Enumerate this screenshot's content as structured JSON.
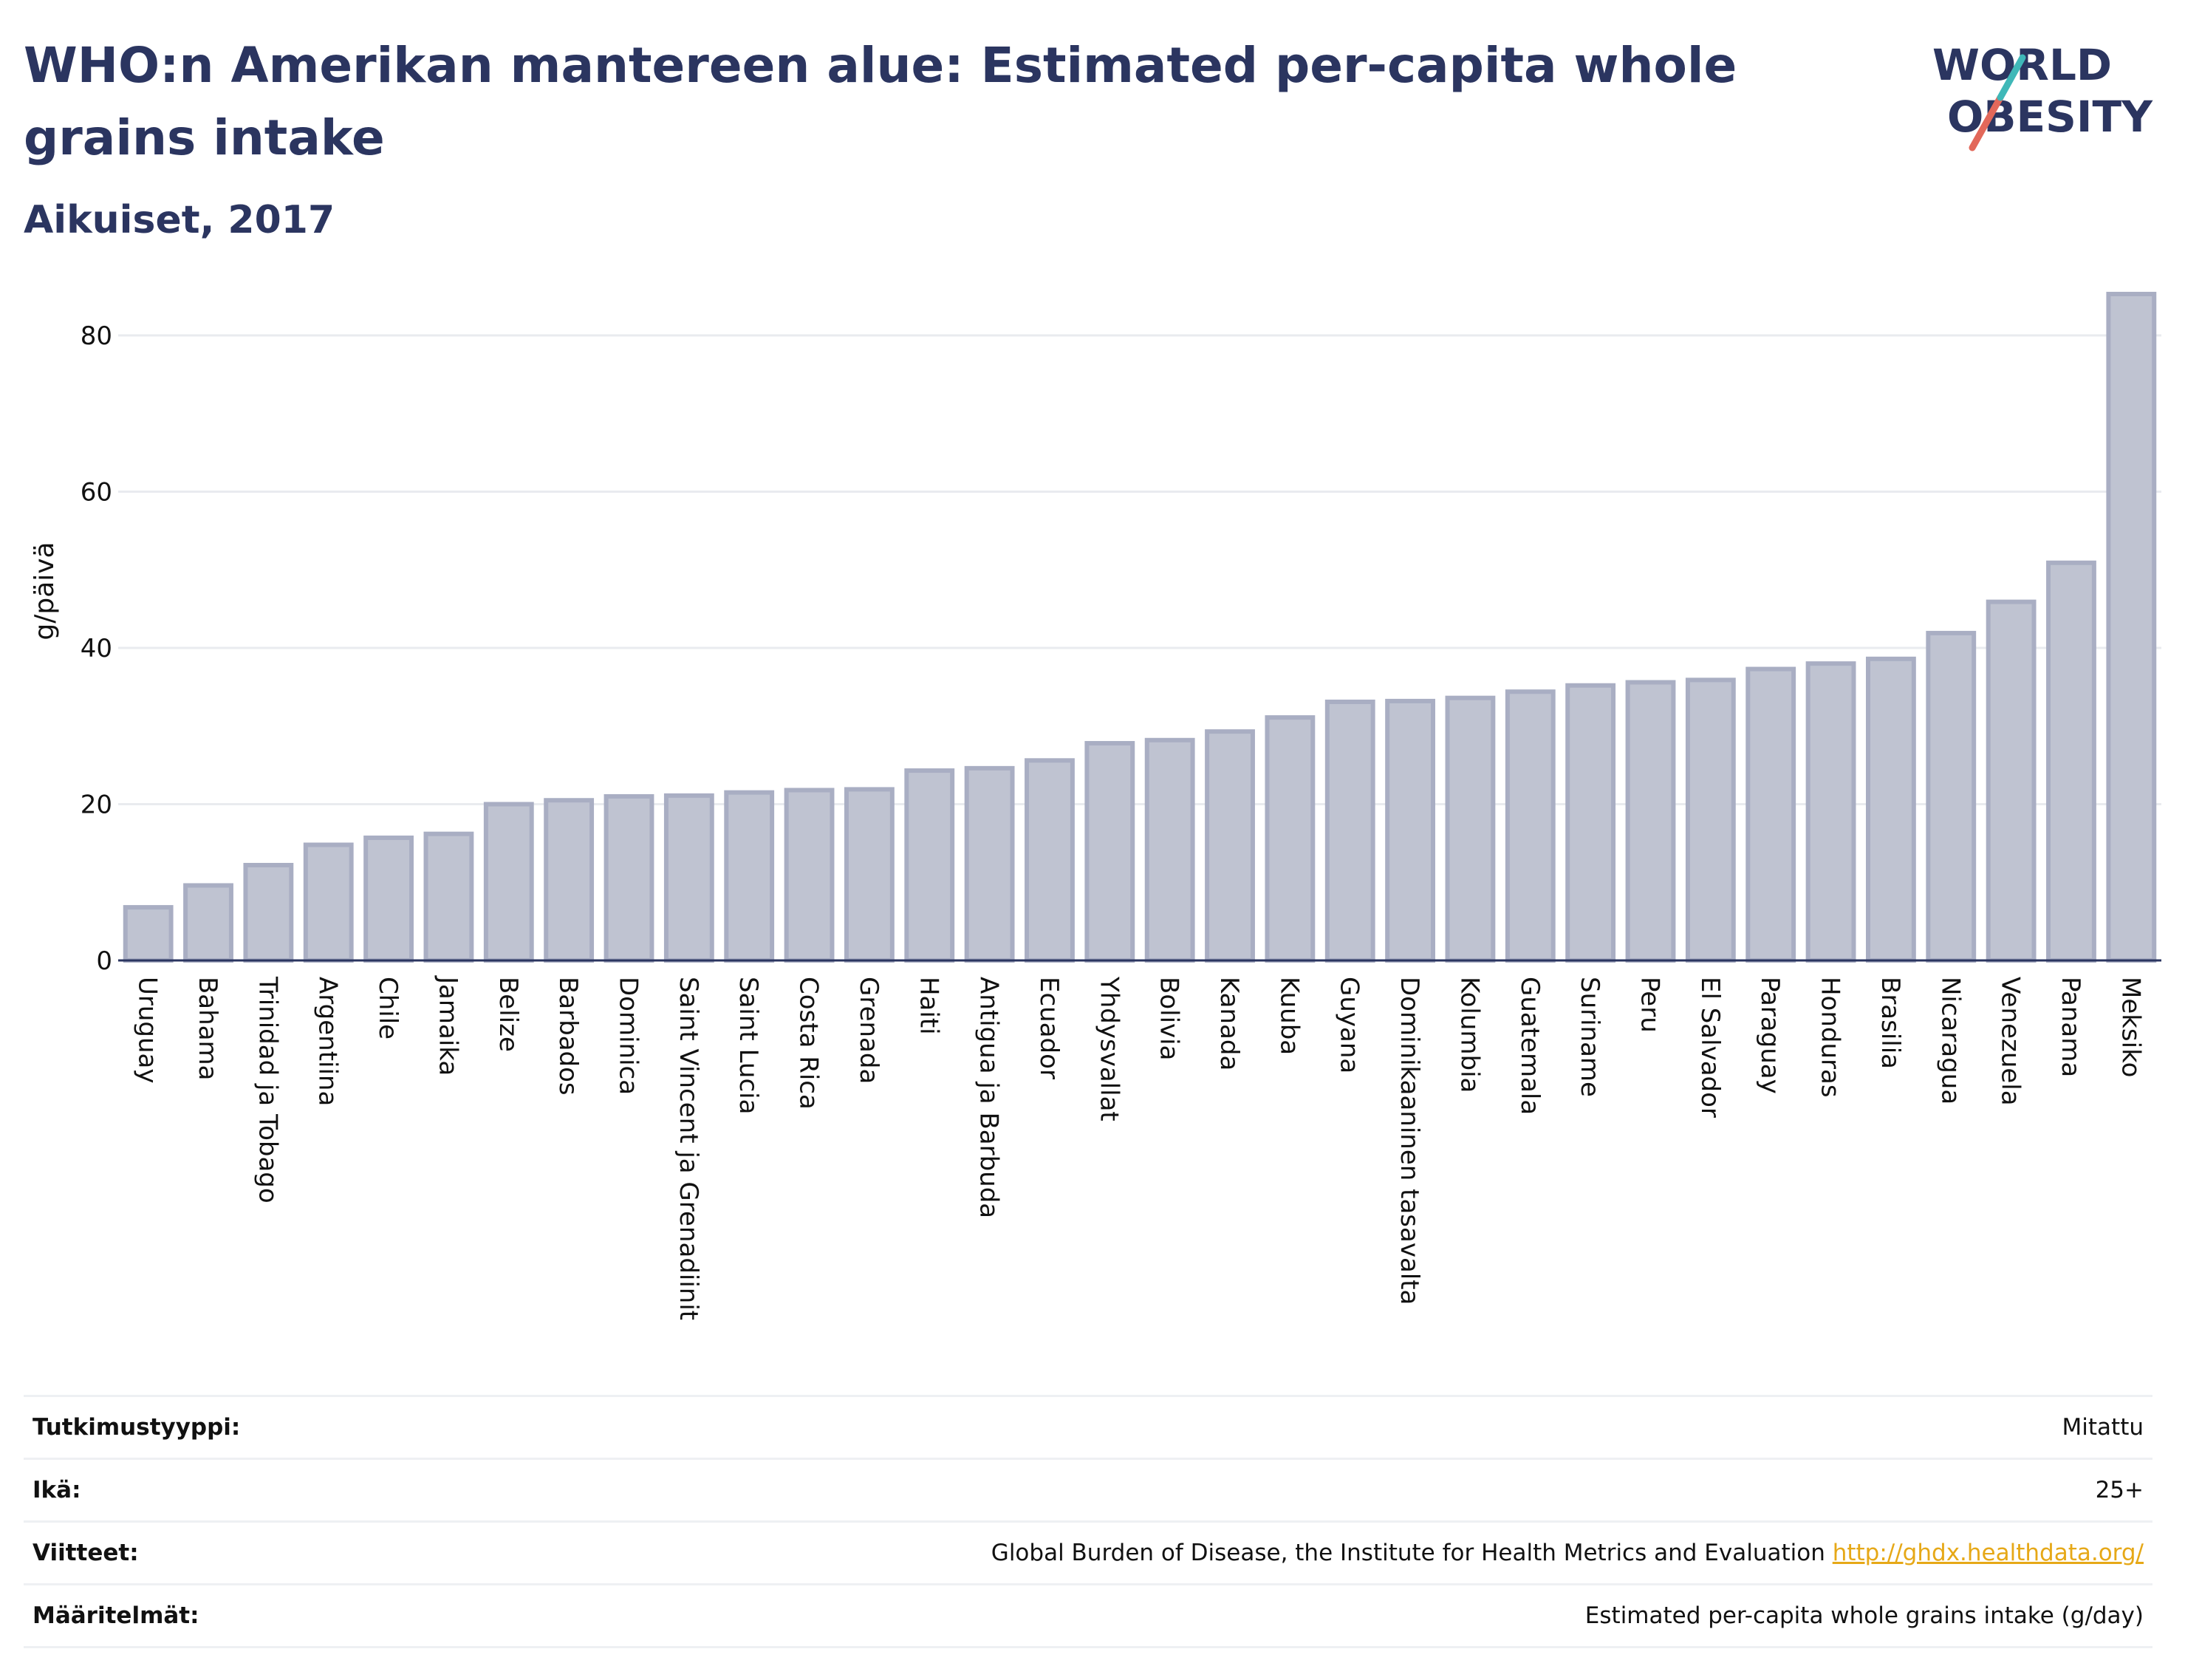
{
  "header": {
    "title": "WHO:n Amerikan mantereen alue: Estimated per-capita whole grains intake",
    "subtitle": "Aikuiset, 2017"
  },
  "logo": {
    "line1": "WORLD",
    "line2": "OBESITY",
    "colors": {
      "text": "#2b3560",
      "slash_teal": "#3fb8b8",
      "slash_coral": "#e2685a"
    }
  },
  "chart_data": {
    "type": "bar",
    "title": "WHO:n Amerikan mantereen alue: Estimated per-capita whole grains intake",
    "subtitle": "Aikuiset, 2017",
    "xlabel": "",
    "ylabel": "g/päivä",
    "ylim": [
      0,
      87
    ],
    "yticks": [
      0,
      20,
      40,
      60,
      80
    ],
    "grid": true,
    "bar_color": "#bfc3d1",
    "bar_edge_color": "#a9aec3",
    "categories": [
      "Uruguay",
      "Bahama",
      "Trinidad ja Tobago",
      "Argentiina",
      "Chile",
      "Jamaika",
      "Belize",
      "Barbados",
      "Dominica",
      "Saint Vincent ja Grenadiinit",
      "Saint Lucia",
      "Costa Rica",
      "Grenada",
      "Haiti",
      "Antigua ja Barbuda",
      "Ecuador",
      "Yhdysvallat",
      "Bolivia",
      "Kanada",
      "Kuuba",
      "Guyana",
      "Dominikaaninen tasavalta",
      "Kolumbia",
      "Guatemala",
      "Suriname",
      "Peru",
      "El Salvador",
      "Paraguay",
      "Honduras",
      "Brasilia",
      "Nicaragua",
      "Venezuela",
      "Panama",
      "Meksiko"
    ],
    "values": [
      6.8,
      9.6,
      12.2,
      14.8,
      15.7,
      16.2,
      20.0,
      20.5,
      21.0,
      21.1,
      21.5,
      21.8,
      21.9,
      24.3,
      24.6,
      25.6,
      27.8,
      28.2,
      29.3,
      31.1,
      33.1,
      33.2,
      33.6,
      34.4,
      35.2,
      35.6,
      35.9,
      37.3,
      38.0,
      38.6,
      41.9,
      45.9,
      50.9,
      85.3
    ]
  },
  "info": [
    {
      "label": "Tutkimustyyppi:",
      "value": "Mitattu"
    },
    {
      "label": "Ikä:",
      "value": "25+"
    },
    {
      "label": "Viitteet:",
      "value": "Global Burden of Disease, the Institute for Health Metrics and Evaluation",
      "link": "http://ghdx.healthdata.org/"
    },
    {
      "label": "Määritelmät:",
      "value": "Estimated per-capita whole grains intake (g/day)"
    }
  ]
}
